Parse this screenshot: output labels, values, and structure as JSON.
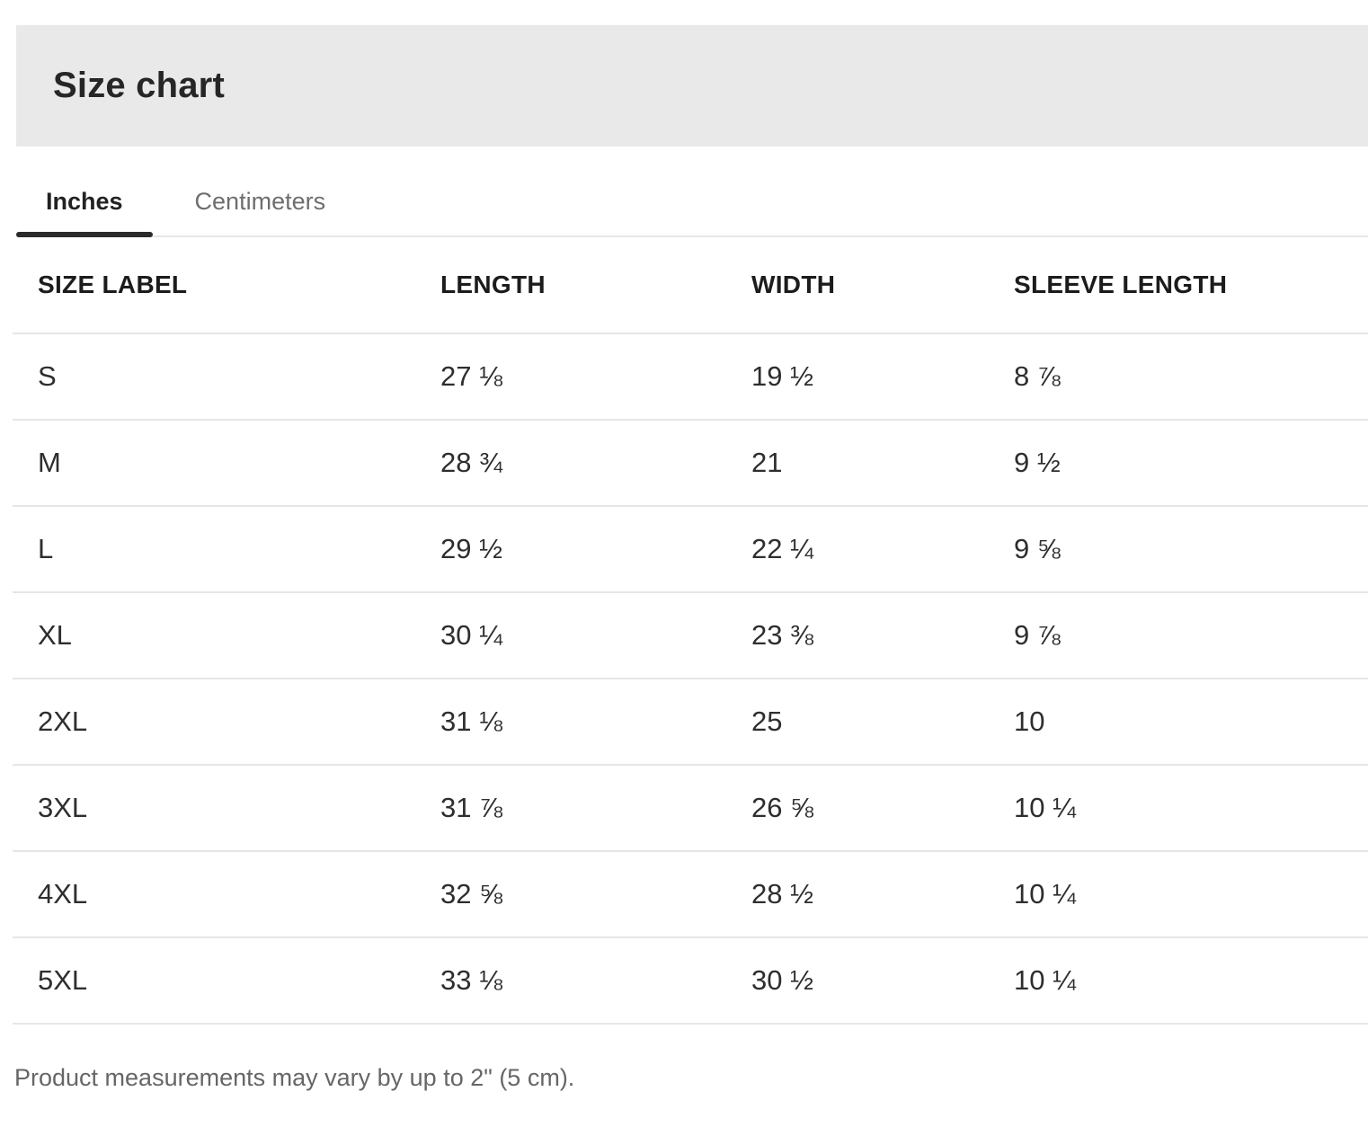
{
  "title": "Size chart",
  "tabs": [
    {
      "label": "Inches",
      "active": true
    },
    {
      "label": "Centimeters",
      "active": false
    }
  ],
  "table": {
    "columns": [
      "SIZE LABEL",
      "LENGTH",
      "WIDTH",
      "SLEEVE LENGTH"
    ],
    "rows": [
      {
        "size": "S",
        "length": "27 ⅛",
        "width": "19 ½",
        "sleeve": "8 ⅞"
      },
      {
        "size": "M",
        "length": "28 ¾",
        "width": "21",
        "sleeve": "9 ½"
      },
      {
        "size": "L",
        "length": "29 ½",
        "width": "22 ¼",
        "sleeve": "9 ⅝"
      },
      {
        "size": "XL",
        "length": "30 ¼",
        "width": "23 ⅜",
        "sleeve": "9 ⅞"
      },
      {
        "size": "2XL",
        "length": "31 ⅛",
        "width": "25",
        "sleeve": "10"
      },
      {
        "size": "3XL",
        "length": "31 ⅞",
        "width": "26 ⅝",
        "sleeve": "10 ¼"
      },
      {
        "size": "4XL",
        "length": "32 ⅝",
        "width": "28 ½",
        "sleeve": "10 ¼"
      },
      {
        "size": "5XL",
        "length": "33 ⅛",
        "width": "30 ½",
        "sleeve": "10 ¼"
      }
    ]
  },
  "footnote": "Product measurements may vary by up to 2\" (5 cm).",
  "colors": {
    "header_background": "#e9e9e9",
    "active_tab_underline": "#2b2b2b",
    "divider": "#e6e6e6",
    "inactive_tab_text": "#6e6e6e"
  }
}
